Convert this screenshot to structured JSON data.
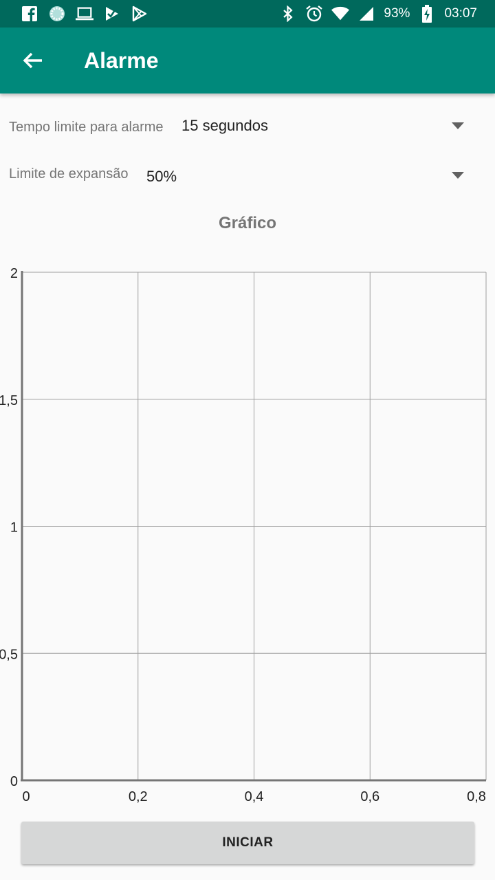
{
  "status_bar": {
    "left_icons": [
      "facebook-icon",
      "spinner-app-icon",
      "laptop-icon",
      "check-flag-icon",
      "play-store-icon"
    ],
    "battery": "93%",
    "time": "03:07"
  },
  "app_bar": {
    "title": "Alarme"
  },
  "settings": {
    "time_limit": {
      "label": "Tempo limite para alarme",
      "value": "15 segundos"
    },
    "expansion_limit": {
      "label": "Limite de expansão",
      "value": "50%"
    }
  },
  "chart_title": "Gráfico",
  "chart_data": {
    "type": "line",
    "title": "Gráfico",
    "xlabel": "",
    "ylabel": "",
    "xlim": [
      0,
      0.8
    ],
    "ylim": [
      0,
      2
    ],
    "x_ticks": [
      "0",
      "0,2",
      "0,4",
      "0,6",
      "0,8"
    ],
    "y_ticks": [
      "0",
      "0,5",
      "1",
      "1,5",
      "2"
    ],
    "grid": true,
    "series": []
  },
  "start_button": {
    "label": "INICIAR"
  }
}
